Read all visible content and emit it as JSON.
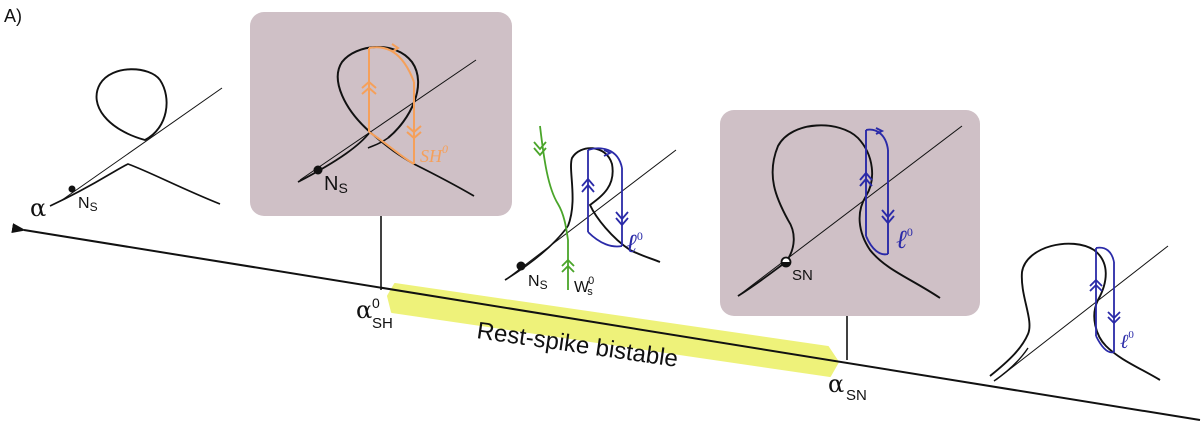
{
  "panel_label": "A)",
  "axis": {
    "param_symbol": "α"
  },
  "region": {
    "label": "Rest-spike bistable",
    "highlight_color": "#eef27a"
  },
  "bifurcations": {
    "sh": {
      "symbol": "α",
      "sup": "0",
      "sub": "SH"
    },
    "sn": {
      "symbol": "α",
      "sub": "SN"
    }
  },
  "snapshots": {
    "s1": {
      "node_label": "N",
      "node_sub": "S"
    },
    "s2": {
      "node_label": "N",
      "node_sub": "S",
      "orbit_label": "SH",
      "orbit_sup": "0",
      "orbit_color": "#f5a05a"
    },
    "s3": {
      "node_label": "N",
      "node_sub": "S",
      "manifold_label": "W",
      "manifold_sub": "s",
      "manifold_sup": "0",
      "manifold_color": "#4aa52a",
      "cycle_label": "ℓ",
      "cycle_sup": "0",
      "cycle_color": "#2a2aa8"
    },
    "s4": {
      "saddle_node_label": "SN",
      "cycle_label": "ℓ",
      "cycle_sup": "0",
      "cycle_color": "#2a2aa8"
    },
    "s5": {
      "cycle_label": "ℓ",
      "cycle_sup": "0",
      "cycle_color": "#2a2aa8"
    }
  },
  "colors": {
    "panel_bg": "#cfc0c6",
    "curve": "#111111"
  }
}
